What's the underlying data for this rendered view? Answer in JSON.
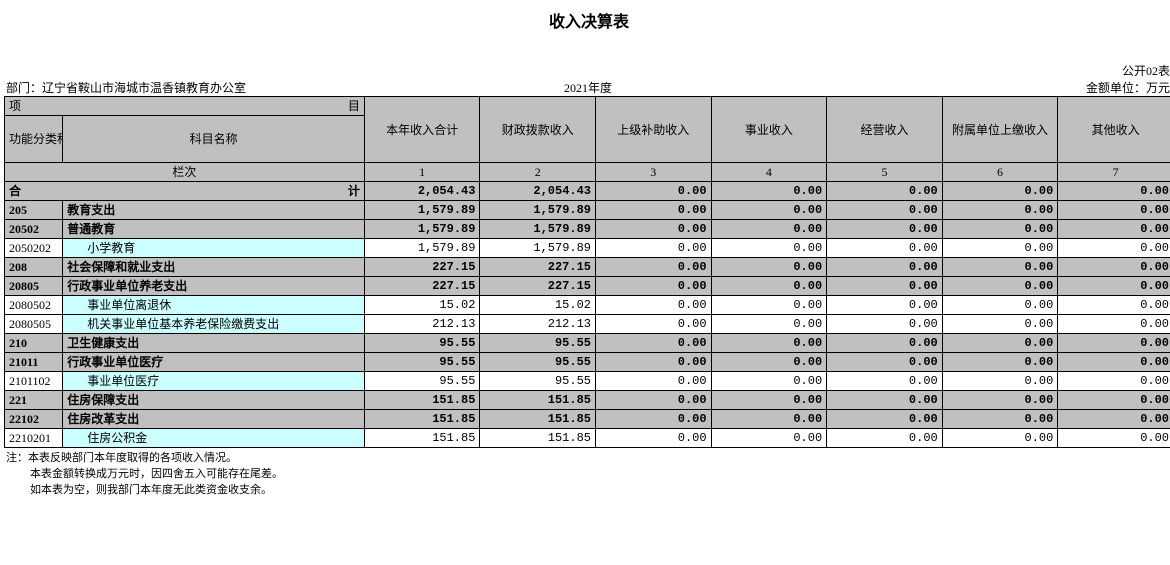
{
  "title": "收入决算表",
  "form_no": "公开02表",
  "department_label": "部门：",
  "department": "辽宁省鞍山市海城市温香镇教育办公室",
  "year": "2021年度",
  "unit": "金额单位：万元",
  "header": {
    "xiangmu": "项",
    "mu": "目",
    "code": "功能分类科目编码",
    "name": "科目名称",
    "lanci": "栏次",
    "cols": [
      "本年收入合计",
      "财政拨款收入",
      "上级补助收入",
      "事业收入",
      "经营收入",
      "附属单位上缴收入",
      "其他收入"
    ],
    "colnums": [
      "1",
      "2",
      "3",
      "4",
      "5",
      "6",
      "7"
    ]
  },
  "total": {
    "label_l": "合",
    "label_r": "计",
    "v": [
      "2,054.43",
      "2,054.43",
      "0.00",
      "0.00",
      "0.00",
      "0.00",
      "0.00"
    ]
  },
  "rows": [
    {
      "code": "205",
      "name": "教育支出",
      "lvl": 1,
      "v": [
        "1,579.89",
        "1,579.89",
        "0.00",
        "0.00",
        "0.00",
        "0.00",
        "0.00"
      ]
    },
    {
      "code": "20502",
      "name": "普通教育",
      "lvl": 2,
      "v": [
        "1,579.89",
        "1,579.89",
        "0.00",
        "0.00",
        "0.00",
        "0.00",
        "0.00"
      ]
    },
    {
      "code": "2050202",
      "name": "小学教育",
      "lvl": 3,
      "v": [
        "1,579.89",
        "1,579.89",
        "0.00",
        "0.00",
        "0.00",
        "0.00",
        "0.00"
      ]
    },
    {
      "code": "208",
      "name": "社会保障和就业支出",
      "lvl": 1,
      "v": [
        "227.15",
        "227.15",
        "0.00",
        "0.00",
        "0.00",
        "0.00",
        "0.00"
      ]
    },
    {
      "code": "20805",
      "name": "行政事业单位养老支出",
      "lvl": 2,
      "v": [
        "227.15",
        "227.15",
        "0.00",
        "0.00",
        "0.00",
        "0.00",
        "0.00"
      ]
    },
    {
      "code": "2080502",
      "name": "事业单位离退休",
      "lvl": 3,
      "v": [
        "15.02",
        "15.02",
        "0.00",
        "0.00",
        "0.00",
        "0.00",
        "0.00"
      ]
    },
    {
      "code": "2080505",
      "name": "机关事业单位基本养老保险缴费支出",
      "lvl": 3,
      "v": [
        "212.13",
        "212.13",
        "0.00",
        "0.00",
        "0.00",
        "0.00",
        "0.00"
      ]
    },
    {
      "code": "210",
      "name": "卫生健康支出",
      "lvl": 1,
      "v": [
        "95.55",
        "95.55",
        "0.00",
        "0.00",
        "0.00",
        "0.00",
        "0.00"
      ]
    },
    {
      "code": "21011",
      "name": "行政事业单位医疗",
      "lvl": 2,
      "v": [
        "95.55",
        "95.55",
        "0.00",
        "0.00",
        "0.00",
        "0.00",
        "0.00"
      ]
    },
    {
      "code": "2101102",
      "name": "事业单位医疗",
      "lvl": 3,
      "v": [
        "95.55",
        "95.55",
        "0.00",
        "0.00",
        "0.00",
        "0.00",
        "0.00"
      ]
    },
    {
      "code": "221",
      "name": "住房保障支出",
      "lvl": 1,
      "v": [
        "151.85",
        "151.85",
        "0.00",
        "0.00",
        "0.00",
        "0.00",
        "0.00"
      ]
    },
    {
      "code": "22102",
      "name": "住房改革支出",
      "lvl": 2,
      "v": [
        "151.85",
        "151.85",
        "0.00",
        "0.00",
        "0.00",
        "0.00",
        "0.00"
      ]
    },
    {
      "code": "2210201",
      "name": "住房公积金",
      "lvl": 3,
      "v": [
        "151.85",
        "151.85",
        "0.00",
        "0.00",
        "0.00",
        "0.00",
        "0.00"
      ]
    }
  ],
  "notes": [
    "注：本表反映部门本年度取得的各项收入情况。",
    "本表金额转换成万元时，因四舍五入可能存在尾差。",
    "如本表为空，则我部门本年度无此类资金收支余。"
  ]
}
